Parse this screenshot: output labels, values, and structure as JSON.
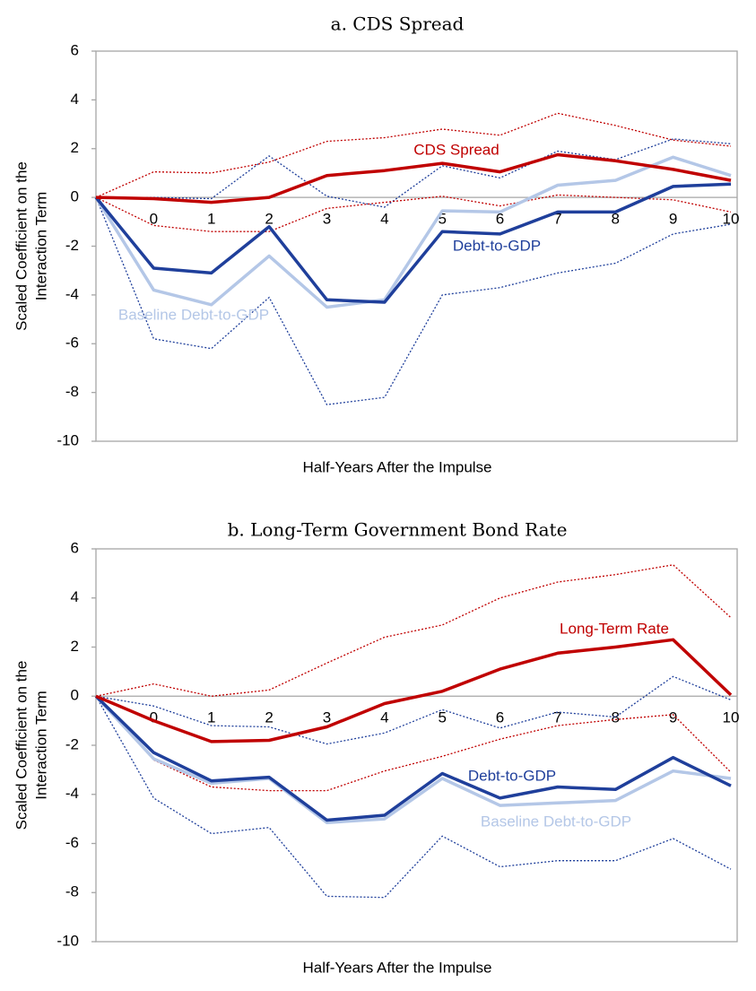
{
  "chart_data": [
    {
      "type": "line",
      "title": "a. CDS Spread",
      "xlabel": "Half-Years After the Impulse",
      "ylabel": [
        "Scaled Coefficient on the",
        "Interaction Term"
      ],
      "categories": [
        null,
        "0",
        "1",
        "2",
        "3",
        "4",
        "5",
        "6",
        "7",
        "8",
        "9",
        "10"
      ],
      "ylim": [
        -10,
        6
      ],
      "yticks": [
        -10,
        -8,
        -6,
        -4,
        -2,
        0,
        2,
        4,
        6
      ],
      "grid": false,
      "series": [
        {
          "name": "Baseline Debt-to-GDP",
          "color": "#b4c7e7",
          "values": [
            0,
            -3.8,
            -4.4,
            -2.4,
            -4.5,
            -4.2,
            -0.55,
            -0.6,
            0.5,
            0.7,
            1.65,
            0.9
          ]
        },
        {
          "name": "Debt-to-GDP",
          "color": "#1f3f9b",
          "values": [
            0,
            -2.9,
            -3.1,
            -1.2,
            -4.2,
            -4.3,
            -1.4,
            -1.5,
            -0.6,
            -0.6,
            0.45,
            0.55
          ],
          "upper": [
            0,
            0.0,
            -0.05,
            1.7,
            0.05,
            -0.4,
            1.3,
            0.8,
            1.9,
            1.55,
            2.4,
            2.2
          ],
          "lower": [
            0,
            -5.8,
            -6.2,
            -4.1,
            -8.5,
            -8.2,
            -4.0,
            -3.7,
            -3.1,
            -2.7,
            -1.5,
            -1.1
          ]
        },
        {
          "name": "CDS Spread",
          "color": "#c00000",
          "values": [
            0,
            -0.05,
            -0.2,
            0,
            0.9,
            1.1,
            1.4,
            1.05,
            1.75,
            1.5,
            1.15,
            0.7
          ],
          "upper": [
            0,
            1.05,
            1.0,
            1.45,
            2.3,
            2.45,
            2.8,
            2.55,
            3.45,
            2.95,
            2.35,
            2.1
          ],
          "lower": [
            0,
            -1.15,
            -1.4,
            -1.4,
            -0.45,
            -0.2,
            0.05,
            -0.35,
            0.1,
            0.0,
            -0.1,
            -0.6
          ]
        }
      ]
    },
    {
      "type": "line",
      "title": "b. Long-Term Government Bond Rate",
      "xlabel": "Half-Years After the Impulse",
      "ylabel": [
        "Scaled Coefficient on the",
        "Interaction Term"
      ],
      "categories": [
        null,
        "0",
        "1",
        "2",
        "3",
        "4",
        "5",
        "6",
        "7",
        "8",
        "9",
        "10"
      ],
      "ylim": [
        -10,
        6
      ],
      "yticks": [
        -10,
        -8,
        -6,
        -4,
        -2,
        0,
        2,
        4,
        6
      ],
      "grid": false,
      "series": [
        {
          "name": "Baseline Debt-to-GDP",
          "color": "#b4c7e7",
          "values": [
            0,
            -2.55,
            -3.55,
            -3.35,
            -5.15,
            -5.0,
            -3.35,
            -4.45,
            -4.35,
            -4.25,
            -3.05,
            -3.35
          ]
        },
        {
          "name": "Debt-to-GDP",
          "color": "#1f3f9b",
          "values": [
            0,
            -2.3,
            -3.45,
            -3.3,
            -5.05,
            -4.85,
            -3.15,
            -4.15,
            -3.7,
            -3.8,
            -2.5,
            -3.65
          ],
          "upper": [
            0,
            -0.4,
            -1.2,
            -1.25,
            -1.95,
            -1.5,
            -0.55,
            -1.3,
            -0.65,
            -0.85,
            0.8,
            -0.15
          ],
          "lower": [
            0,
            -4.15,
            -5.6,
            -5.35,
            -8.15,
            -8.2,
            -5.7,
            -6.95,
            -6.7,
            -6.7,
            -5.8,
            -7.05
          ]
        },
        {
          "name": "Long-Term Rate",
          "color": "#c00000",
          "values": [
            0,
            -1.0,
            -1.85,
            -1.8,
            -1.25,
            -0.3,
            0.2,
            1.1,
            1.75,
            2.0,
            2.3,
            0.05
          ],
          "upper": [
            0,
            0.5,
            0.0,
            0.25,
            1.35,
            2.4,
            2.9,
            4.0,
            4.65,
            4.95,
            5.35,
            3.2
          ],
          "lower": [
            0,
            -2.6,
            -3.7,
            -3.85,
            -3.85,
            -3.05,
            -2.45,
            -1.75,
            -1.2,
            -0.95,
            -0.75,
            -3.1
          ]
        }
      ]
    }
  ]
}
